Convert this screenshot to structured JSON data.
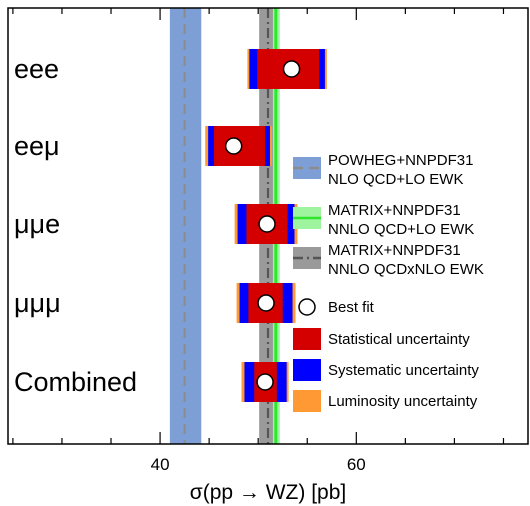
{
  "chart_data": {
    "type": "scatter",
    "xlabel": "σ(pp → WZ) [pb]",
    "xlim": [
      24.5,
      77.5
    ],
    "xticks": [
      40,
      60
    ],
    "measurements": [
      {
        "label": "eee",
        "value": 53.4,
        "stat": [
          49.9,
          56.2
        ],
        "syst": [
          49.1,
          56.8
        ],
        "lumi": [
          48.9,
          57.0
        ]
      },
      {
        "label": "eeμ",
        "value": 47.5,
        "stat": [
          45.5,
          50.7
        ],
        "syst": [
          44.9,
          51.2
        ],
        "lumi": [
          44.6,
          51.4
        ]
      },
      {
        "label": "μμe",
        "value": 50.9,
        "stat": [
          48.8,
          53.0
        ],
        "syst": [
          47.9,
          53.7
        ],
        "lumi": [
          47.6,
          54.0
        ]
      },
      {
        "label": "μμμ",
        "value": 50.8,
        "stat": [
          49.0,
          52.5
        ],
        "syst": [
          48.1,
          53.5
        ],
        "lumi": [
          47.8,
          53.8
        ]
      },
      {
        "label": "Combined",
        "value": 50.7,
        "stat": [
          49.6,
          51.9
        ],
        "syst": [
          48.6,
          52.9
        ],
        "lumi": [
          48.3,
          53.1
        ]
      }
    ],
    "predictions": [
      {
        "name": "POWHEG+NNPDF31\nNLO QCD+LO EWK",
        "central": 42.5,
        "band": [
          41.0,
          44.2
        ],
        "band_color": "#7e9fd6",
        "line_color": "#8c8c8c",
        "line_style": "dashed"
      },
      {
        "name": "MATRIX+NNPDF31\nNNLO QCD+LO EWK",
        "central": 51.8,
        "band": [
          51.3,
          52.2
        ],
        "band_color": "#9ff59f",
        "line_color": "#2ee62e",
        "line_style": "solid"
      },
      {
        "name": "MATRIX+NNPDF31\nNNLO QCDxNLO EWK",
        "central": 51.0,
        "band": [
          50.1,
          51.5
        ],
        "band_color": "#9a9a9a",
        "line_color": "#555555",
        "line_style": "dashdot"
      }
    ],
    "legend": [
      {
        "key": "powheg",
        "lines": [
          "POWHEG+NNPDF31",
          "NLO QCD+LO EWK"
        ]
      },
      {
        "key": "matrix-lo",
        "lines": [
          "MATRIX+NNPDF31",
          "NNLO QCD+LO EWK"
        ]
      },
      {
        "key": "matrix-nlo",
        "lines": [
          "MATRIX+NNPDF31",
          "NNLO QCDxNLO EWK"
        ]
      },
      {
        "key": "best-fit",
        "lines": [
          "Best fit"
        ]
      },
      {
        "key": "stat",
        "lines": [
          "Statistical uncertainty"
        ]
      },
      {
        "key": "syst",
        "lines": [
          "Systematic uncertainty"
        ]
      },
      {
        "key": "lumi",
        "lines": [
          "Luminosity uncertainty"
        ]
      }
    ],
    "legend_position": "right",
    "colors": {
      "stat": "#d40000",
      "syst": "#0000ff",
      "lumi": "#ff9933",
      "marker_fill": "#ffffff",
      "marker_edge": "#000000"
    },
    "grid": false
  }
}
